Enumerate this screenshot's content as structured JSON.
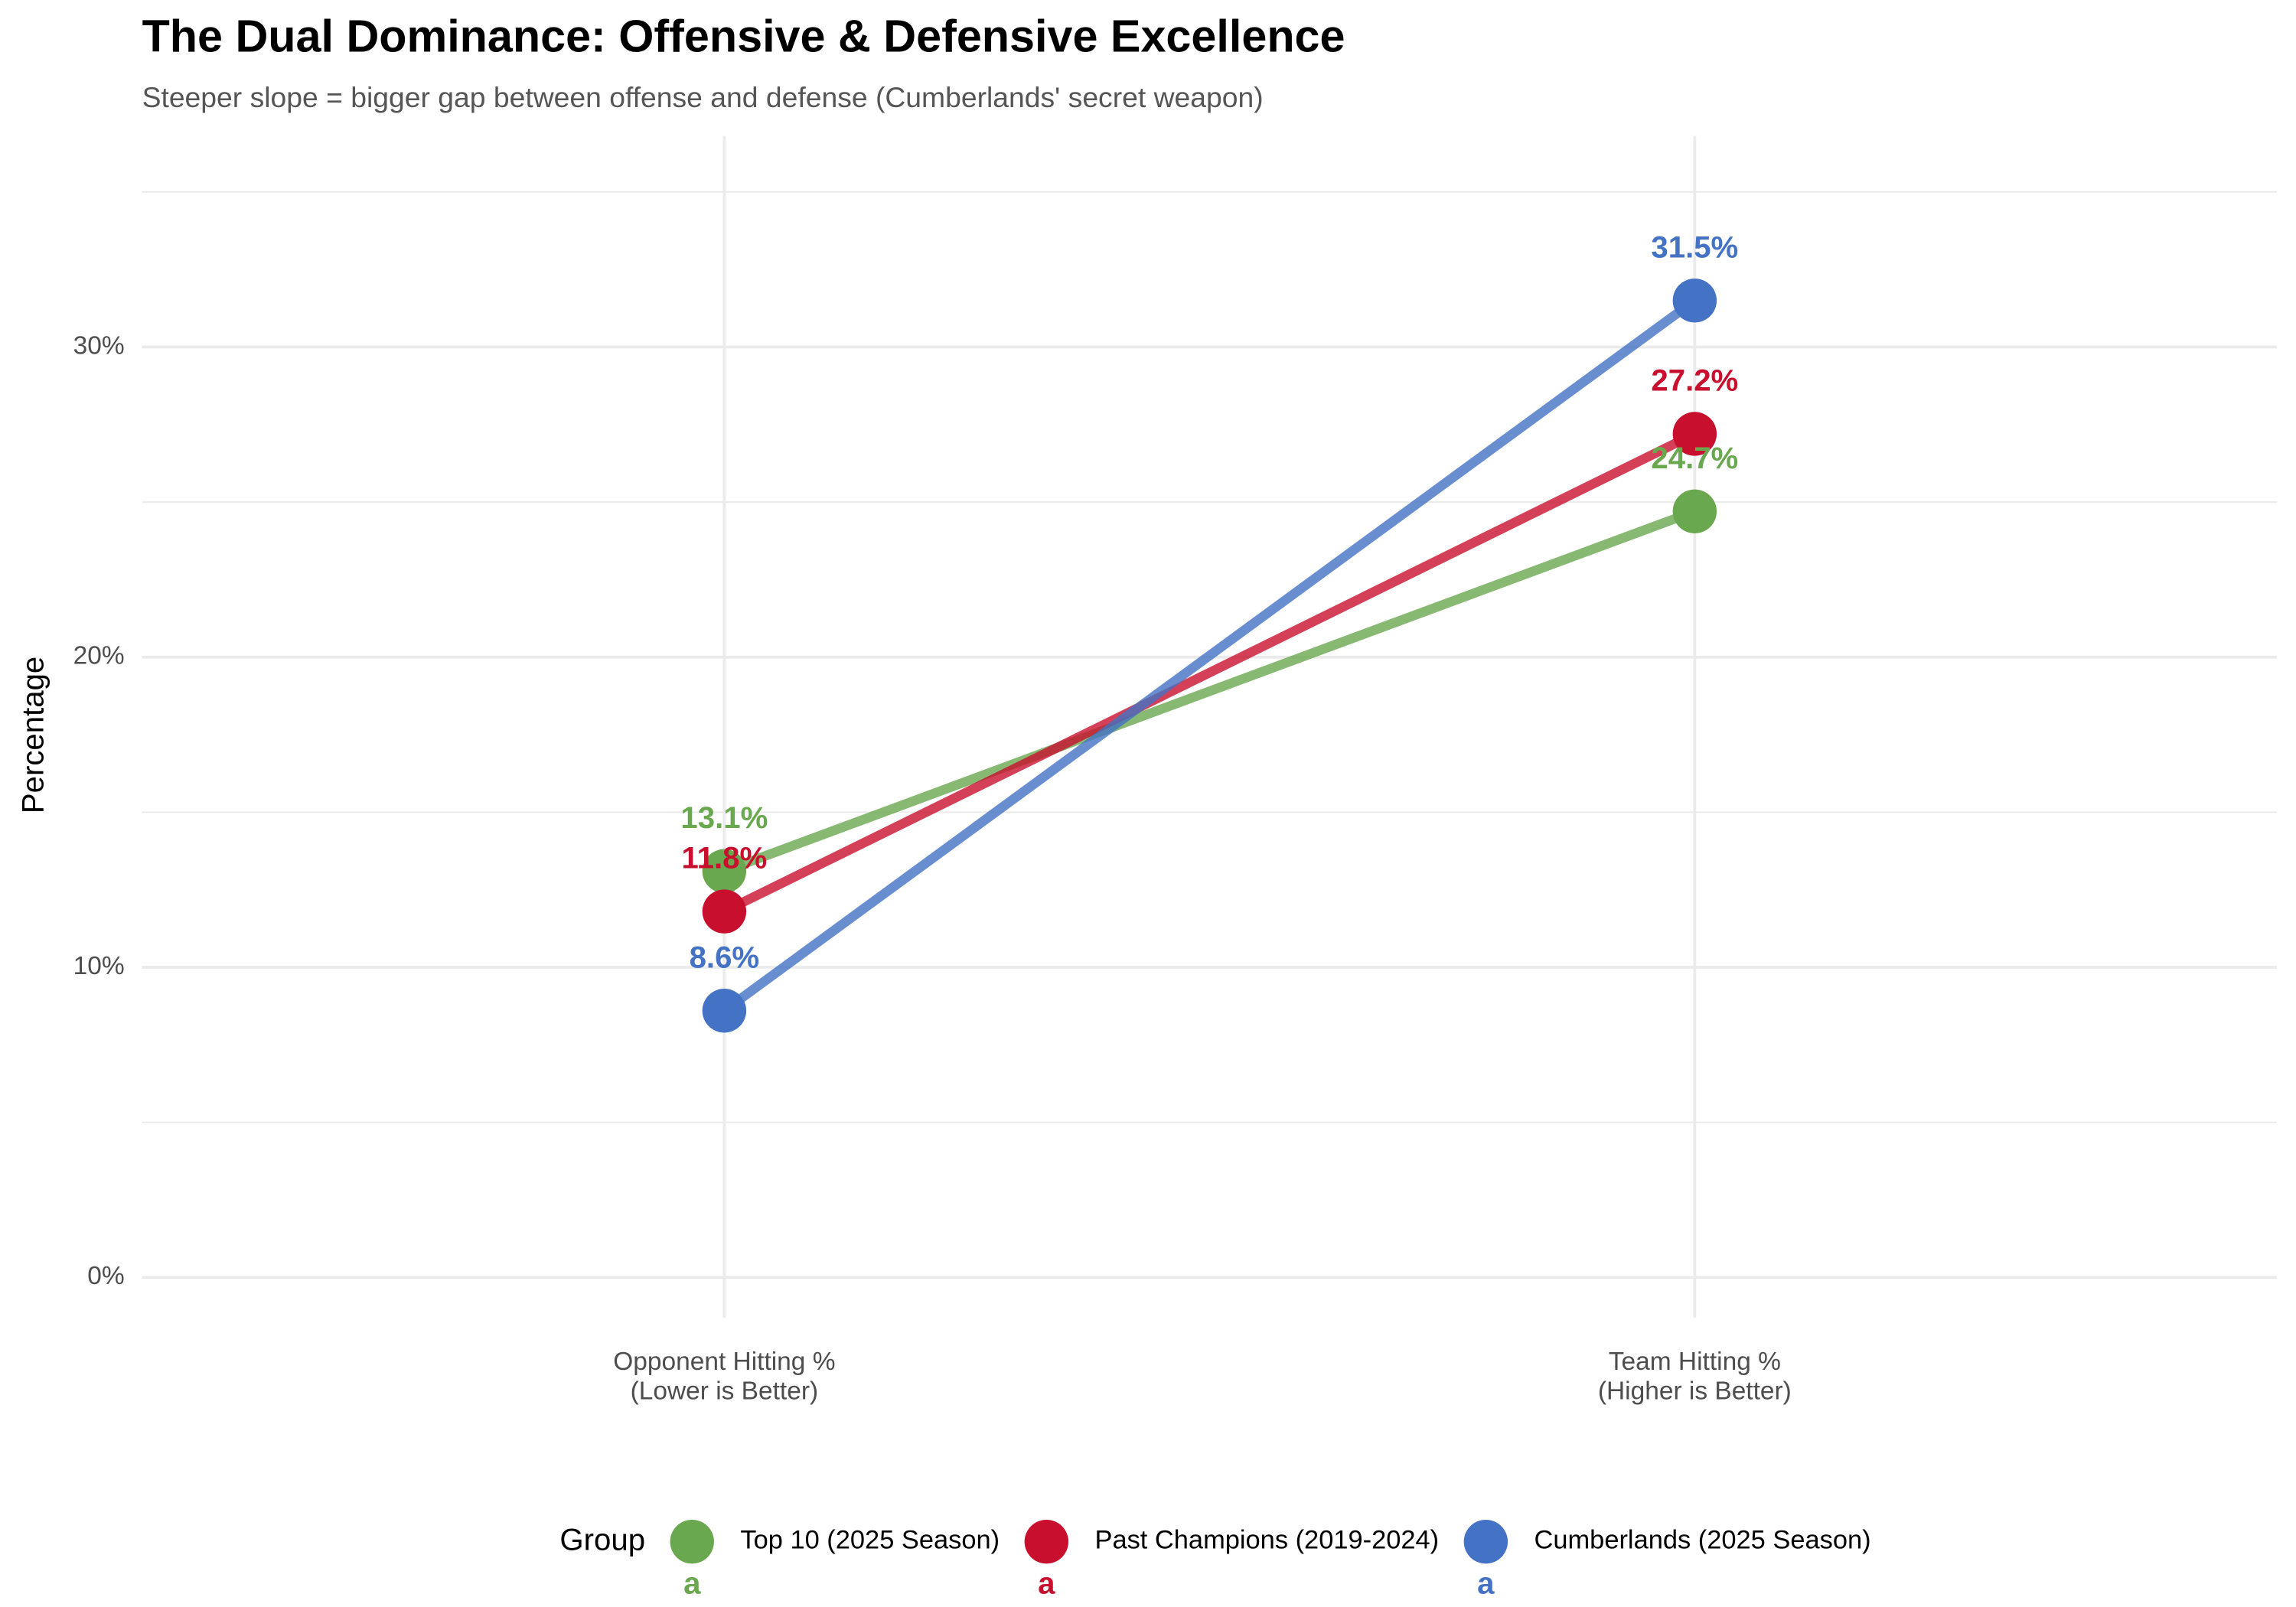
{
  "chart_data": {
    "type": "slope",
    "title": "The Dual Dominance: Offensive & Defensive Excellence",
    "subtitle": "Steeper slope = bigger gap between offense and defense (Cumberlands' secret weapon)",
    "y_label": "Percentage",
    "categories": [
      "Opponent Hitting %\n(Lower is Better)",
      "Team Hitting %\n(Higher is Better)"
    ],
    "series": [
      {
        "name": "Top 10 (2025 Season)",
        "color": "#6aa84f",
        "values": [
          13.1,
          24.7
        ],
        "value_labels": [
          "13.1%",
          "24.7%"
        ]
      },
      {
        "name": "Past Champions (2019-2024)",
        "color": "#c8102e",
        "values": [
          11.8,
          27.2
        ],
        "value_labels": [
          "11.8%",
          "27.2%"
        ]
      },
      {
        "name": "Cumberlands (2025 Season)",
        "color": "#4472c4",
        "values": [
          8.6,
          31.5
        ],
        "value_labels": [
          "8.6%",
          "31.5%"
        ]
      }
    ],
    "ylim": [
      -1.3,
      36.8
    ],
    "yticks": [
      {
        "value": 0,
        "label": "0%"
      },
      {
        "value": 10,
        "label": "10%"
      },
      {
        "value": 20,
        "label": "20%"
      },
      {
        "value": 30,
        "label": "30%"
      }
    ],
    "minor_yticks": [
      5,
      15,
      25,
      35
    ],
    "grid": true,
    "legend_title": "Group",
    "legend_key_text": "a",
    "legend_position": "bottom"
  }
}
